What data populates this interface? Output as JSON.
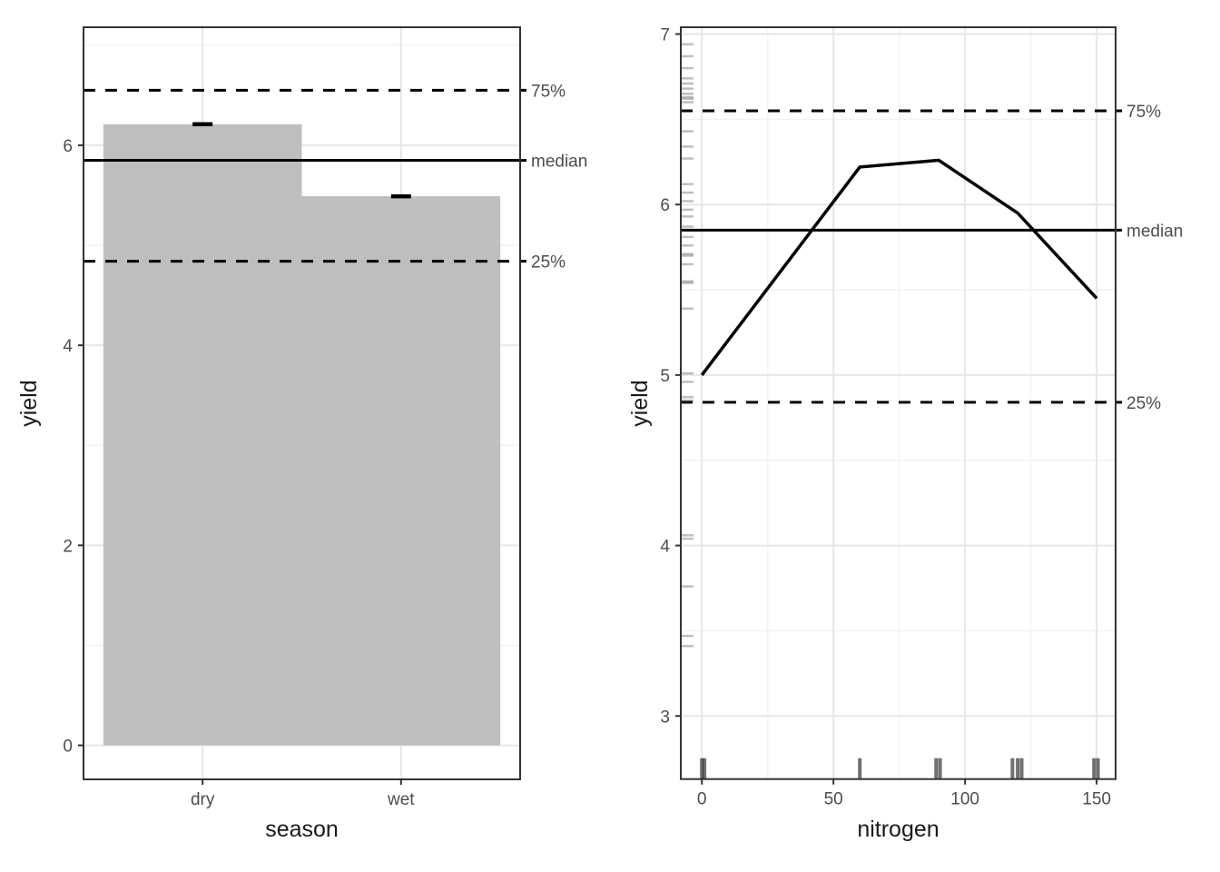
{
  "figure": {
    "background": "#ffffff"
  },
  "palette": {
    "bar_fill": "#bebebe",
    "grid_major": "#e6e6e6",
    "grid_minor": "#f2f2f2",
    "panel_border": "#333333",
    "axis_text": "#4d4d4d",
    "axis_title": "#1a1a1a",
    "tick": "#333333",
    "data_line": "#000000",
    "ref_line": "#000000",
    "ref_label": "#4d4d4d",
    "rug_y": "rgba(0,0,0,0.25)",
    "rug_x": "rgba(26,26,26,0.62)"
  },
  "chart_data": [
    {
      "id": "yield-by-season",
      "type": "bar",
      "title": "",
      "xlabel": "season",
      "ylabel": "yield",
      "categories": [
        "dry",
        "wet"
      ],
      "values": [
        6.21,
        5.49
      ],
      "crossbar_values": [
        6.21,
        5.49
      ],
      "ylim": [
        -0.34,
        7.18
      ],
      "y_major_ticks": [
        0,
        2,
        4,
        6
      ],
      "y_minor_gridlines": [
        1,
        3,
        5,
        7
      ],
      "grid": "on",
      "legend": "none",
      "ref_lines": [
        {
          "label": "75%",
          "value": 6.55,
          "line": "dashed"
        },
        {
          "label": "median",
          "value": 5.85,
          "line": "solid"
        },
        {
          "label": "25%",
          "value": 4.84,
          "line": "dashed"
        }
      ]
    },
    {
      "id": "yield-by-nitrogen",
      "type": "line",
      "title": "",
      "xlabel": "nitrogen",
      "ylabel": "yield",
      "x": [
        0,
        60,
        90,
        120,
        150
      ],
      "y": [
        5.0,
        6.22,
        6.26,
        5.95,
        5.45
      ],
      "xlim": [
        -8,
        157.2
      ],
      "ylim": [
        2.63,
        7.04
      ],
      "x_major_ticks": [
        0,
        50,
        100,
        150
      ],
      "x_minor_gridlines": [
        25,
        75,
        125
      ],
      "y_major_ticks": [
        3,
        4,
        5,
        6,
        7
      ],
      "y_minor_gridlines": [
        3.5,
        4.5,
        5.5,
        6.5
      ],
      "grid": "on",
      "legend": "none",
      "rug_y": [
        6.94,
        6.87,
        6.8,
        6.74,
        6.71,
        6.68,
        6.65,
        6.63,
        6.62,
        6.6,
        6.43,
        6.34,
        6.27,
        6.12,
        6.07,
        6.02,
        5.97,
        5.93,
        5.87,
        5.81,
        5.76,
        5.71,
        5.7,
        5.65,
        5.55,
        5.54,
        5.39,
        5.01,
        4.96,
        4.87,
        4.85,
        4.06,
        4.04,
        3.76,
        3.47,
        3.41
      ],
      "rug_x": [
        0,
        1,
        60,
        89,
        90.5,
        118,
        120,
        121.5,
        149,
        150.5
      ],
      "ref_lines": [
        {
          "label": "75%",
          "value": 6.55,
          "line": "dashed"
        },
        {
          "label": "median",
          "value": 5.85,
          "line": "solid"
        },
        {
          "label": "25%",
          "value": 4.84,
          "line": "dashed"
        }
      ]
    }
  ]
}
